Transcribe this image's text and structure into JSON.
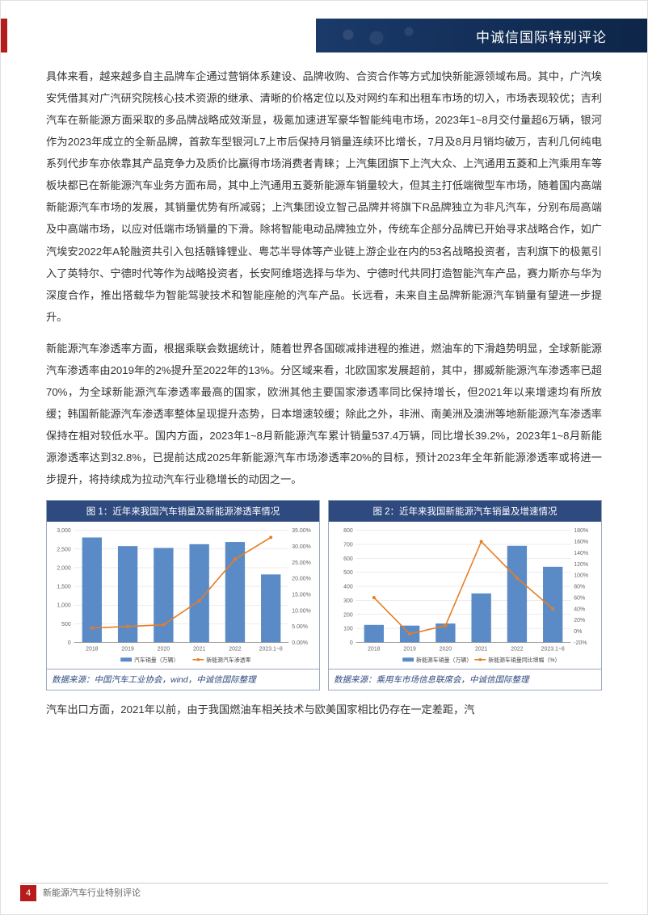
{
  "header": {
    "banner_text": "中诚信国际特别评论"
  },
  "paragraphs": {
    "p1": "具体来看，越来越多自主品牌车企通过营销体系建设、品牌收购、合资合作等方式加快新能源领域布局。其中，广汽埃安凭借其对广汽研究院核心技术资源的继承、清晰的价格定位以及对网约车和出租车市场的切入，市场表现较优；吉利汽车在新能源方面采取的多品牌战略成效渐显，极氪加速进军豪华智能纯电市场，2023年1~8月交付量超6万辆，银河作为2023年成立的全新品牌，首款车型银河L7上市后保持月销量连续环比增长，7月及8月月销均破万，吉利几何纯电系列代步车亦依靠其产品竞争力及质价比赢得市场消费者青睐；上汽集团旗下上汽大众、上汽通用五菱和上汽乘用车等板块都已在新能源汽车业务方面布局，其中上汽通用五菱新能源车销量较大，但其主打低端微型车市场，随着国内高端新能源汽车市场的发展，其销量优势有所减弱；上汽集团设立智己品牌并将旗下R品牌独立为非凡汽车，分别布局高端及中高端市场，以应对低端市场销量的下滑。除将智能电动品牌独立外，传统车企部分品牌已开始寻求战略合作，如广汽埃安2022年A轮融资共引入包括赣锋锂业、粤芯半导体等产业链上游企业在内的53名战略投资者，吉利旗下的极氪引入了英特尔、宁德时代等作为战略投资者，长安阿维塔选择与华为、宁德时代共同打造智能汽车产品，赛力斯亦与华为深度合作，推出搭载华为智能驾驶技术和智能座舱的汽车产品。长远看，未来自主品牌新能源汽车销量有望进一步提升。",
    "p2": "新能源汽车渗透率方面，根据乘联会数据统计，随着世界各国碳减排进程的推进，燃油车的下滑趋势明显，全球新能源汽车渗透率由2019年的2%提升至2022年的13%。分区域来看，北欧国家发展超前，其中，挪威新能源汽车渗透率已超70%，为全球新能源汽车渗透率最高的国家，欧洲其他主要国家渗透率同比保持增长，但2021年以来增速均有所放缓；韩国新能源汽车渗透率整体呈现提升态势，日本增速较缓；除此之外，非洲、南美洲及澳洲等地新能源汽车渗透率保持在相对较低水平。国内方面，2023年1~8月新能源汽车累计销量537.4万辆，同比增长39.2%，2023年1~8月新能源渗透率达到32.8%，已提前达成2025年新能源汽车市场渗透率20%的目标，预计2023年全年新能源渗透率或将进一步提升，将持续成为拉动汽车行业稳增长的动因之一。",
    "p3": "汽车出口方面，2021年以前，由于我国燃油车相关技术与欧美国家相比仍存在一定差距，汽"
  },
  "chart1": {
    "type": "bar+line",
    "title": "图 1：近年来我国汽车销量及新能源渗透率情况",
    "source": "数据来源：中国汽车工业协会，wind，中诚信国际整理",
    "categories": [
      "2018",
      "2019",
      "2020",
      "2021",
      "2022",
      "2023.1~8"
    ],
    "bar_values": [
      2810,
      2580,
      2530,
      2630,
      2690,
      1820
    ],
    "bar_label": "汽车销量（万辆）",
    "bar_color": "#5b8bc7",
    "line_values": [
      4.5,
      5,
      5.5,
      13,
      26,
      32.8
    ],
    "line_label": "新能源汽车渗透率",
    "line_color": "#e67e22",
    "y1_ticks": [
      0,
      500,
      1000,
      1500,
      2000,
      2500,
      3000
    ],
    "y1_lim": [
      0,
      3000
    ],
    "y2_ticks": [
      "0.00%",
      "5.00%",
      "10.00%",
      "15.00%",
      "20.00%",
      "25.00%",
      "30.00%",
      "35.00%"
    ],
    "y2_lim": [
      0,
      35
    ],
    "background_color": "#ffffff",
    "grid_color": "#d8d8d8",
    "axis_fontsize": 7,
    "title_fontsize": 11.5
  },
  "chart2": {
    "type": "bar+line",
    "title": "图 2：近年来我国新能源汽车销量及增速情况",
    "source": "数据来源：乘用车市场信息联席会，中诚信国际整理",
    "categories": [
      "2018",
      "2019",
      "2020",
      "2021",
      "2022",
      "2023.1~8"
    ],
    "bar_values": [
      125,
      120,
      135,
      350,
      690,
      540
    ],
    "bar_label": "新能源车销量（万辆）",
    "bar_color": "#5b8bc7",
    "line_values": [
      60,
      -5,
      10,
      160,
      95,
      40
    ],
    "line_label": "新能源车销量同比增幅（%）",
    "line_color": "#e67e22",
    "y1_ticks": [
      0,
      100,
      200,
      300,
      400,
      500,
      600,
      700,
      800
    ],
    "y1_lim": [
      0,
      800
    ],
    "y2_ticks": [
      "-20%",
      "0%",
      "20%",
      "40%",
      "60%",
      "80%",
      "100%",
      "120%",
      "140%",
      "160%",
      "180%"
    ],
    "y2_lim": [
      -20,
      180
    ],
    "background_color": "#ffffff",
    "grid_color": "#d8d8d8",
    "axis_fontsize": 7,
    "title_fontsize": 11.5
  },
  "footer": {
    "page_num": "4",
    "doc_title": "新能源汽车行业特别评论"
  }
}
